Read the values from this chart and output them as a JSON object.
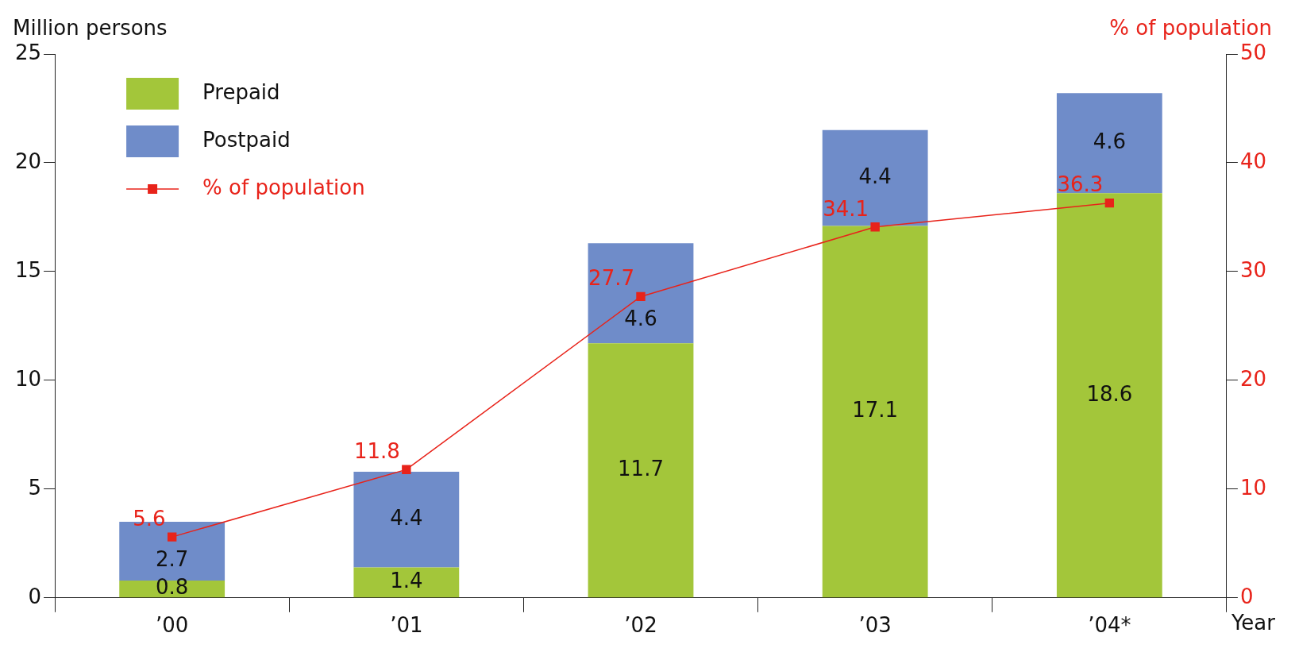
{
  "chart_data": {
    "type": "bar",
    "stacked": true,
    "categories": [
      "’00",
      "’01",
      "’02",
      "’03",
      "’04*"
    ],
    "series": [
      {
        "name": "Prepaid",
        "color": "#a3c63a",
        "values": [
          0.8,
          1.4,
          11.7,
          17.1,
          18.6
        ]
      },
      {
        "name": "Postpaid",
        "color": "#6f8cc9",
        "values": [
          2.7,
          4.4,
          4.6,
          4.4,
          4.6
        ]
      },
      {
        "name": "% of population",
        "type": "line",
        "axis": "y2",
        "color": "#e8231a",
        "marker": "square",
        "values": [
          5.6,
          11.8,
          27.7,
          34.1,
          36.3
        ]
      }
    ],
    "ylabel": "Million persons",
    "y2label": "% of population",
    "xlabel": "Year",
    "ylim": [
      0,
      25
    ],
    "yticks": [
      0,
      5,
      10,
      15,
      20,
      25
    ],
    "y2lim": [
      0,
      50
    ],
    "y2ticks": [
      0,
      10,
      20,
      30,
      40,
      50
    ],
    "data_labels": true,
    "grid": false,
    "legend": "top left"
  }
}
